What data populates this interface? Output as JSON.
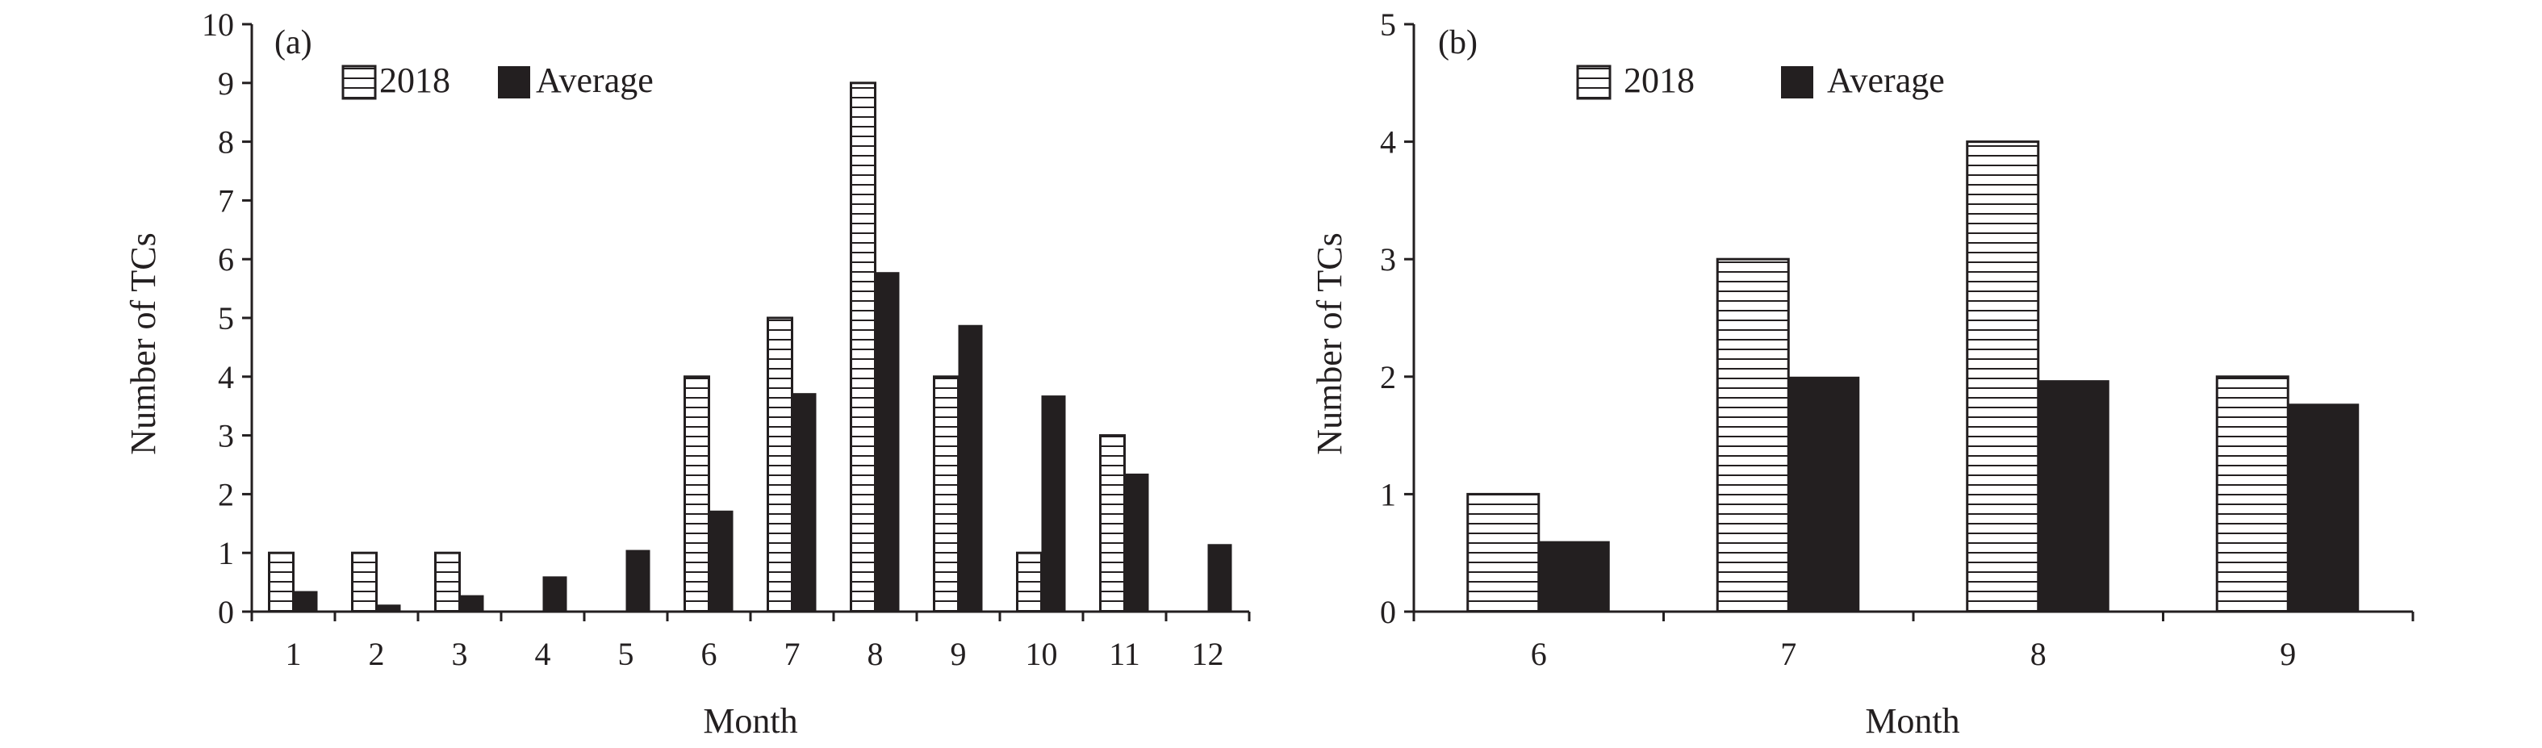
{
  "colors": {
    "ink": "#231f20",
    "bar_2018_fill": "#ffffff",
    "bar_2018_hatch": "#231f20",
    "bar_average_fill": "#231f20"
  },
  "chart_data": [
    {
      "type": "bar",
      "panel_label": "(a)",
      "xlabel": "Month",
      "ylabel": "Number of TCs",
      "categories": [
        "1",
        "2",
        "3",
        "4",
        "5",
        "6",
        "7",
        "8",
        "9",
        "10",
        "11",
        "12"
      ],
      "ylim": [
        0,
        10
      ],
      "yticks": [
        0,
        1,
        2,
        3,
        4,
        5,
        6,
        7,
        8,
        9,
        10
      ],
      "legend_position": "top-left",
      "series": [
        {
          "name": "2018",
          "style": "horizontal-hatch",
          "values": [
            1,
            1,
            1,
            0,
            0,
            4,
            5,
            9,
            4,
            1,
            3,
            0
          ]
        },
        {
          "name": "Average",
          "style": "solid-black",
          "values": [
            0.35,
            0.12,
            0.28,
            0.6,
            1.05,
            1.72,
            3.72,
            5.78,
            4.88,
            3.68,
            2.35,
            1.15
          ]
        }
      ]
    },
    {
      "type": "bar",
      "panel_label": "(b)",
      "xlabel": "Month",
      "ylabel": "Number of TCs",
      "categories": [
        "6",
        "7",
        "8",
        "9"
      ],
      "ylim": [
        0,
        5
      ],
      "yticks": [
        0,
        1,
        2,
        3,
        4,
        5
      ],
      "legend_position": "top-left",
      "series": [
        {
          "name": "2018",
          "style": "horizontal-hatch",
          "values": [
            1,
            3,
            4,
            2
          ]
        },
        {
          "name": "Average",
          "style": "solid-black",
          "values": [
            0.6,
            2.0,
            1.97,
            1.77
          ]
        }
      ]
    }
  ]
}
